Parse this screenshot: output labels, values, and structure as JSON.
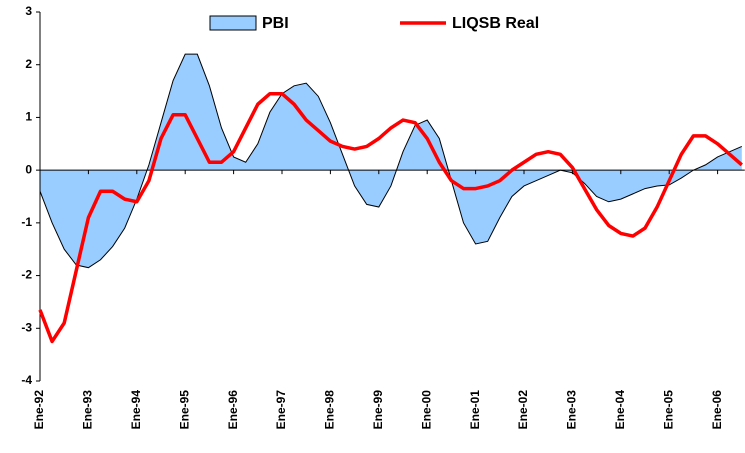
{
  "chart_data": {
    "type": "area-line",
    "categories": [
      "Ene-92",
      null,
      null,
      null,
      "Ene-93",
      null,
      null,
      null,
      "Ene-94",
      null,
      null,
      null,
      "Ene-95",
      null,
      null,
      null,
      "Ene-96",
      null,
      null,
      null,
      "Ene-97",
      null,
      null,
      null,
      "Ene-98",
      null,
      null,
      null,
      "Ene-99",
      null,
      null,
      null,
      "Ene-00",
      null,
      null,
      null,
      "Ene-01",
      null,
      null,
      null,
      "Ene-02",
      null,
      null,
      null,
      "Ene-03",
      null,
      null,
      null,
      "Ene-04",
      null,
      null,
      null,
      "Ene-05",
      null,
      null,
      null,
      "Ene-06",
      null,
      null
    ],
    "series": [
      {
        "name": "PBI",
        "kind": "area",
        "color": "#99ccff",
        "values": [
          -0.4,
          -1.0,
          -1.5,
          -1.8,
          -1.85,
          -1.7,
          -1.45,
          -1.1,
          -0.55,
          0.1,
          0.9,
          1.7,
          2.2,
          2.2,
          1.6,
          0.8,
          0.25,
          0.15,
          0.5,
          1.1,
          1.45,
          1.6,
          1.65,
          1.4,
          0.9,
          0.3,
          -0.3,
          -0.65,
          -0.7,
          -0.3,
          0.35,
          0.85,
          0.95,
          0.6,
          -0.2,
          -1.0,
          -1.4,
          -1.35,
          -0.9,
          -0.5,
          -0.3,
          -0.2,
          -0.1,
          0.0,
          -0.05,
          -0.25,
          -0.5,
          -0.6,
          -0.55,
          -0.45,
          -0.35,
          -0.3,
          -0.28,
          -0.15,
          0.0,
          0.1,
          0.25,
          0.35,
          0.45
        ]
      },
      {
        "name": "LIQSB Real",
        "kind": "line",
        "color": "#ff0000",
        "values": [
          -2.65,
          -3.25,
          -2.9,
          -1.9,
          -0.9,
          -0.4,
          -0.4,
          -0.55,
          -0.6,
          -0.2,
          0.6,
          1.05,
          1.05,
          0.6,
          0.15,
          0.15,
          0.35,
          0.8,
          1.25,
          1.45,
          1.45,
          1.25,
          0.95,
          0.75,
          0.55,
          0.45,
          0.4,
          0.45,
          0.6,
          0.8,
          0.95,
          0.9,
          0.6,
          0.15,
          -0.2,
          -0.35,
          -0.35,
          -0.3,
          -0.2,
          0.0,
          0.15,
          0.3,
          0.35,
          0.3,
          0.05,
          -0.35,
          -0.75,
          -1.05,
          -1.2,
          -1.25,
          -1.1,
          -0.7,
          -0.2,
          0.3,
          0.65,
          0.65,
          0.5,
          0.3,
          0.1
        ]
      }
    ],
    "ylim": [
      -4,
      3
    ],
    "yticks": [
      -4,
      -3,
      -2,
      -1,
      0,
      1,
      2,
      3
    ],
    "grid": false,
    "legend": "top"
  }
}
